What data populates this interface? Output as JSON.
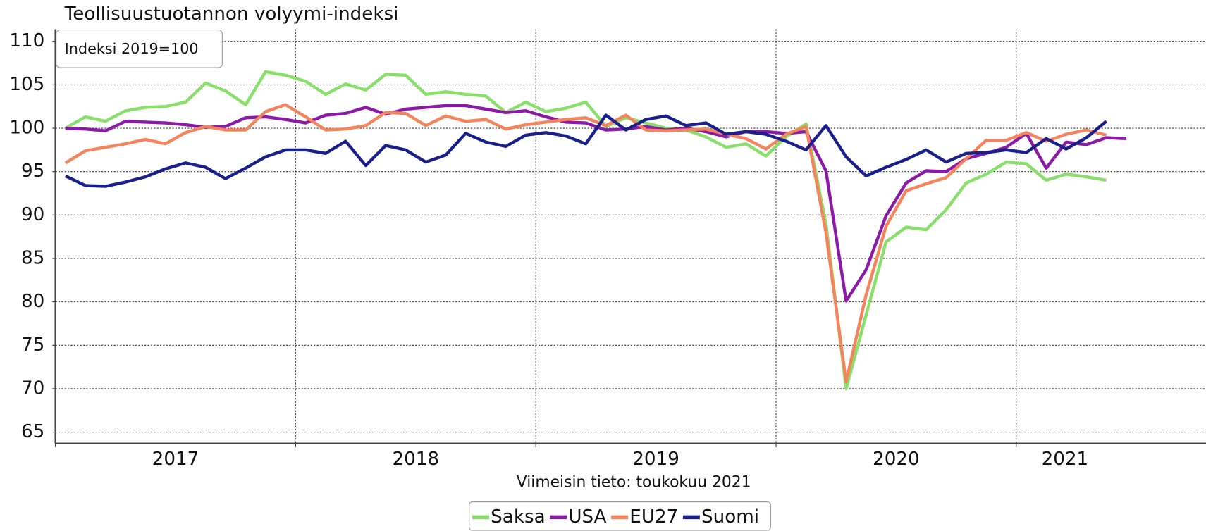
{
  "chart_data": {
    "type": "line",
    "title": "Teollisuustuotannon volyymi-indeksi",
    "annotation": "Indeksi 2019=100",
    "note": "Viimeisin tieto: toukokuu 2021",
    "x": [
      2017.042,
      2017.125,
      2017.208,
      2017.292,
      2017.375,
      2017.458,
      2017.542,
      2017.625,
      2017.708,
      2017.792,
      2017.875,
      2017.958,
      2018.042,
      2018.125,
      2018.208,
      2018.292,
      2018.375,
      2018.458,
      2018.542,
      2018.625,
      2018.708,
      2018.792,
      2018.875,
      2018.958,
      2019.042,
      2019.125,
      2019.208,
      2019.292,
      2019.375,
      2019.458,
      2019.542,
      2019.625,
      2019.708,
      2019.792,
      2019.875,
      2019.958,
      2020.042,
      2020.125,
      2020.208,
      2020.292,
      2020.375,
      2020.458,
      2020.542,
      2020.625,
      2020.708,
      2020.792,
      2020.875,
      2020.958,
      2021.042,
      2021.125,
      2021.208,
      2021.292,
      2021.375,
      2021.458
    ],
    "xlim": [
      2017,
      2021.79
    ],
    "xticks": [
      2017,
      2018,
      2019,
      2020,
      2021
    ],
    "ylim": [
      63.7,
      111.4
    ],
    "yticks": [
      65,
      70,
      75,
      80,
      85,
      90,
      95,
      100,
      105,
      110
    ],
    "grid": true,
    "legend": "bottom",
    "series": [
      {
        "name": "Saksa",
        "color": "#88e06a",
        "values": [
          100,
          101.3,
          100.8,
          102,
          102.4,
          102.5,
          103,
          105.2,
          104.3,
          102.7,
          106.5,
          106.1,
          105.4,
          103.9,
          105.1,
          104.4,
          106.2,
          106.1,
          103.9,
          104.2,
          103.9,
          103.7,
          101.8,
          103,
          101.9,
          102.3,
          103,
          100.2,
          101.2,
          100.6,
          100,
          99.8,
          99,
          97.8,
          98.2,
          96.8,
          99,
          100.5,
          89,
          70,
          78.5,
          86.9,
          88.6,
          88.3,
          90.6,
          93.7,
          94.7,
          96.1,
          95.9,
          94,
          94.7,
          94.4,
          94,
          null
        ]
      },
      {
        "name": "USA",
        "color": "#8b1aa8",
        "values": [
          100,
          99.9,
          99.7,
          100.8,
          100.7,
          100.6,
          100.4,
          100.1,
          100.2,
          101.2,
          101.3,
          101,
          100.6,
          101.5,
          101.7,
          102.4,
          101.6,
          102.2,
          102.4,
          102.6,
          102.6,
          102.2,
          101.8,
          102,
          101.3,
          100.7,
          100.6,
          99.8,
          99.9,
          100.2,
          99.8,
          100,
          99.6,
          99,
          99.6,
          99.6,
          99.4,
          99.6,
          95.1,
          80.1,
          83.7,
          89.9,
          93.7,
          95.1,
          95,
          96.5,
          97.1,
          97.8,
          99.4,
          95.4,
          98.4,
          98.1,
          98.9,
          98.8
        ]
      },
      {
        "name": "EU27",
        "color": "#f5845c",
        "values": [
          96,
          97.4,
          97.8,
          98.2,
          98.7,
          98.2,
          99.5,
          100.2,
          99.8,
          99.8,
          101.9,
          102.7,
          101.3,
          99.8,
          99.9,
          100.3,
          101.8,
          101.7,
          100.3,
          101.4,
          100.8,
          101,
          99.9,
          100.4,
          100.7,
          101,
          101.2,
          100.3,
          101.5,
          99.8,
          99.7,
          99.8,
          99.9,
          99.3,
          98.8,
          97.6,
          99.3,
          100.2,
          88,
          70.8,
          80.8,
          88.7,
          92.8,
          93.6,
          94.3,
          96.5,
          98.6,
          98.6,
          99.5,
          98.5,
          99.3,
          99.8,
          99.2,
          null
        ]
      },
      {
        "name": "Suomi",
        "color": "#1a1f8c",
        "values": [
          94.5,
          93.4,
          93.3,
          93.8,
          94.4,
          95.3,
          96,
          95.5,
          94.2,
          95.4,
          96.7,
          97.5,
          97.5,
          97.1,
          98.5,
          95.7,
          98,
          97.5,
          96.1,
          96.9,
          99.4,
          98.4,
          97.9,
          99.2,
          99.5,
          99.1,
          98.2,
          101.5,
          99.8,
          101,
          101.4,
          100.3,
          100.6,
          99.3,
          99.6,
          99.3,
          98.5,
          97.5,
          100.3,
          96.7,
          94.5,
          95.5,
          96.4,
          97.5,
          96.1,
          97.1,
          97.2,
          97.5,
          97.2,
          98.8,
          97.6,
          98.9,
          100.8,
          null
        ]
      }
    ]
  }
}
